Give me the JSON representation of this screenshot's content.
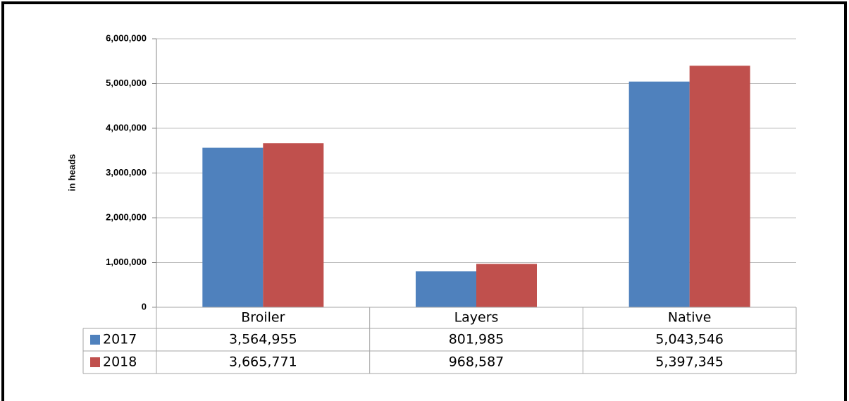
{
  "chart_data": {
    "type": "bar",
    "ylabel": "in heads",
    "categories": [
      "Broiler",
      "Layers",
      "Native"
    ],
    "series": [
      {
        "name": "2017",
        "color": "#4f81bd",
        "values": [
          3564955,
          801985,
          5043546
        ],
        "value_labels": [
          "3,564,955",
          "801,985",
          "5,043,546"
        ]
      },
      {
        "name": "2018",
        "color": "#c0504d",
        "values": [
          3665771,
          968587,
          5397345
        ],
        "value_labels": [
          "3,665,771",
          "968,587",
          "5,397,345"
        ]
      }
    ],
    "ylim": [
      0,
      6000000
    ],
    "yticks": [
      0,
      {
        "value": 1000000,
        "label": "1,000,000"
      },
      {
        "value": 2000000,
        "label": "2,000,000"
      },
      {
        "value": 3000000,
        "label": "3,000,000"
      },
      {
        "value": 4000000,
        "label": "4,000,000"
      },
      {
        "value": 5000000,
        "label": "5,000,000"
      },
      {
        "value": 6000000,
        "label": "6,000,000"
      }
    ],
    "grid": true
  }
}
